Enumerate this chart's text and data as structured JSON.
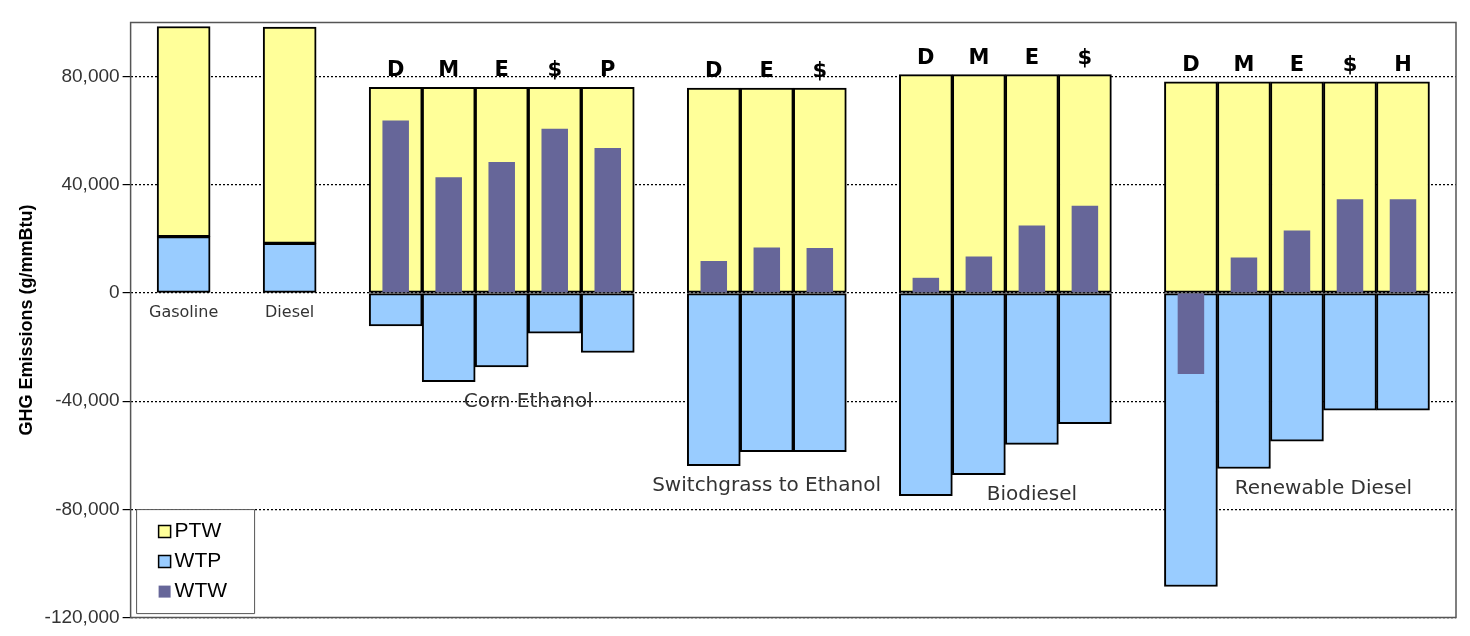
{
  "chart_data": {
    "type": "bar",
    "ylabel": "GHG Emissions (g/mmBtu)",
    "categories": [
      null,
      "Gasoline",
      null,
      "Diesel",
      null,
      "D",
      "M",
      "E",
      "$",
      "P",
      null,
      "D",
      "E",
      "$",
      null,
      "D",
      "M",
      "E",
      "$",
      null,
      "D",
      "M",
      "E",
      "$",
      "H",
      null
    ],
    "series": [
      {
        "name": "PTW",
        "color": "#ffff99",
        "values": [
          null,
          77700,
          null,
          80000,
          null,
          76000,
          76000,
          76000,
          76000,
          76000,
          null,
          75700,
          75700,
          75700,
          null,
          80700,
          80700,
          80700,
          80700,
          null,
          78000,
          78000,
          78000,
          78000,
          78000,
          null
        ],
        "base": [
          null,
          20800,
          null,
          18300,
          null,
          0,
          0,
          0,
          0,
          0,
          null,
          0,
          0,
          0,
          null,
          0,
          0,
          0,
          0,
          null,
          0,
          0,
          0,
          0,
          0,
          null
        ]
      },
      {
        "name": "WTP",
        "color": "#99ccff",
        "values": [
          null,
          20800,
          null,
          18300,
          null,
          -12200,
          -32800,
          -27300,
          -14900,
          -22000,
          null,
          -63800,
          -58700,
          -58700,
          null,
          -74900,
          -67200,
          -56000,
          -48300,
          null,
          -108500,
          -64900,
          -54800,
          -43300,
          -43300,
          null
        ]
      },
      {
        "name": "WTW",
        "color": "#666699",
        "values": [
          null,
          null,
          null,
          null,
          null,
          63700,
          42800,
          48400,
          60700,
          53600,
          null,
          11800,
          16800,
          16600,
          null,
          5600,
          13500,
          24900,
          32200,
          null,
          -30000,
          13100,
          23100,
          34600,
          34600,
          null
        ]
      }
    ],
    "ylim": [
      -120000,
      100000
    ],
    "yticks": [
      {
        "value": -120000,
        "label": "-120,000"
      },
      {
        "value": -80000,
        "label": "-80,000"
      },
      {
        "value": -40000,
        "label": "-40,000"
      },
      0,
      {
        "value": 40000,
        "label": "40,000"
      },
      {
        "value": 80000,
        "label": "80,000"
      }
    ],
    "grid": "y",
    "legend": "bottom left",
    "annotations": [
      "Corn Ethanol",
      "Switchgrass to Ethanol",
      "Biodiesel",
      "Renewable Diesel"
    ]
  }
}
